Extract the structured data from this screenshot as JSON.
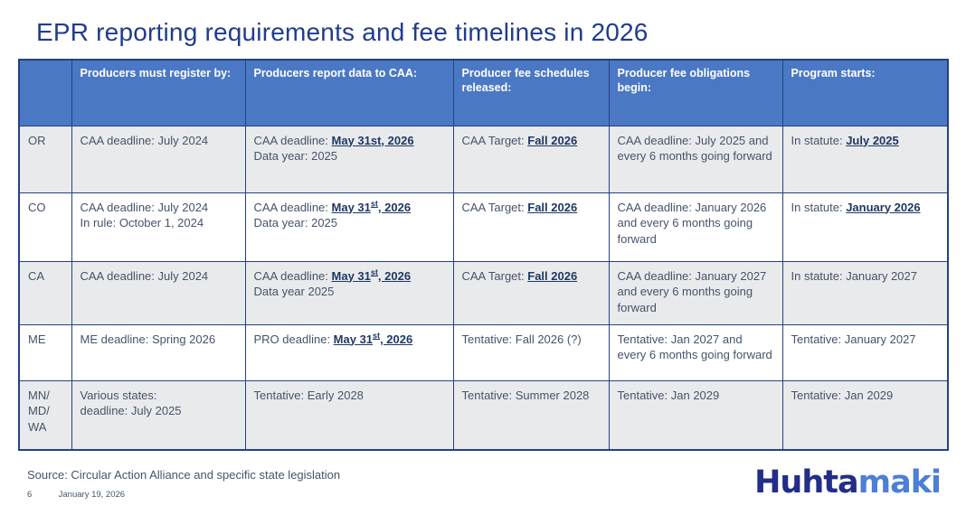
{
  "title": "EPR reporting requirements and fee timelines in 2026",
  "table": {
    "headers": [
      "",
      "Producers must register by:",
      "Producers report data to CAA:",
      "Producer fee schedules released:",
      "Producer fee obligations begin:",
      "Program starts:"
    ],
    "rows": [
      {
        "state": [
          "OR"
        ],
        "register": [
          [
            {
              "t": "CAA deadline: July 2024"
            }
          ]
        ],
        "report": [
          [
            {
              "t": "CAA deadline: "
            },
            {
              "t": "May 31st, 2026",
              "b": true,
              "u": true
            }
          ],
          [
            {
              "t": "Data year: 2025"
            }
          ]
        ],
        "schedules": [
          [
            {
              "t": "CAA Target: "
            },
            {
              "t": "Fall 2026",
              "b": true,
              "u": true
            }
          ]
        ],
        "obligations": [
          [
            {
              "t": "CAA deadline: July 2025 and every 6 months going forward"
            }
          ]
        ],
        "starts": [
          [
            {
              "t": "In statute: "
            },
            {
              "t": "July 2025",
              "b": true,
              "u": true
            }
          ]
        ]
      },
      {
        "state": [
          "CO"
        ],
        "register": [
          [
            {
              "t": "CAA deadline: July 2024"
            }
          ],
          [
            {
              "t": "In rule: October 1, 2024"
            }
          ]
        ],
        "report": [
          [
            {
              "t": "CAA deadline: "
            },
            {
              "t": "May 31",
              "b": true,
              "u": true
            },
            {
              "t": "st",
              "b": true,
              "u": true,
              "s": true
            },
            {
              "t": ", 2026",
              "b": true,
              "u": true
            }
          ],
          [
            {
              "t": "Data year: 2025"
            }
          ]
        ],
        "schedules": [
          [
            {
              "t": "CAA Target: "
            },
            {
              "t": "Fall 2026",
              "b": true,
              "u": true
            }
          ]
        ],
        "obligations": [
          [
            {
              "t": "CAA deadline: January 2026 and every 6 months going forward"
            }
          ]
        ],
        "starts": [
          [
            {
              "t": "In statute: "
            },
            {
              "t": "January 2026",
              "b": true,
              "u": true
            }
          ]
        ]
      },
      {
        "state": [
          "CA"
        ],
        "register": [
          [
            {
              "t": "CAA deadline: July 2024"
            }
          ]
        ],
        "report": [
          [
            {
              "t": "CAA deadline: "
            },
            {
              "t": "May 31",
              "b": true,
              "u": true
            },
            {
              "t": "st",
              "b": true,
              "u": true,
              "s": true
            },
            {
              "t": ", 2026",
              "b": true,
              "u": true
            }
          ],
          [
            {
              "t": "Data year 2025"
            }
          ]
        ],
        "schedules": [
          [
            {
              "t": "CAA Target: "
            },
            {
              "t": "Fall 2026",
              "b": true,
              "u": true
            }
          ]
        ],
        "obligations": [
          [
            {
              "t": "CAA deadline: January 2027 and every 6 months going forward"
            }
          ]
        ],
        "starts": [
          [
            {
              "t": "In statute: January 2027"
            }
          ]
        ]
      },
      {
        "state": [
          "ME"
        ],
        "register": [
          [
            {
              "t": "ME deadline: Spring 2026"
            }
          ]
        ],
        "report": [
          [
            {
              "t": "PRO deadline: "
            },
            {
              "t": "May 31",
              "b": true,
              "u": true
            },
            {
              "t": "st",
              "b": true,
              "u": true,
              "s": true
            },
            {
              "t": ", 2026",
              "b": true,
              "u": true
            }
          ]
        ],
        "schedules": [
          [
            {
              "t": "Tentative: Fall 2026 (?)"
            }
          ]
        ],
        "obligations": [
          [
            {
              "t": "Tentative: Jan 2027 and every 6 months going forward"
            }
          ]
        ],
        "starts": [
          [
            {
              "t": "Tentative: January 2027"
            }
          ]
        ]
      },
      {
        "state": [
          "MN/",
          "MD/",
          "WA"
        ],
        "register": [
          [
            {
              "t": "Various states:"
            }
          ],
          [
            {
              "t": "deadline: July 2025"
            }
          ]
        ],
        "report": [
          [
            {
              "t": "Tentative: Early 2028"
            }
          ]
        ],
        "schedules": [
          [
            {
              "t": "Tentative: Summer 2028"
            }
          ]
        ],
        "obligations": [
          [
            {
              "t": "Tentative: Jan 2029"
            }
          ]
        ],
        "starts": [
          [
            {
              "t": "Tentative: Jan 2029"
            }
          ]
        ]
      }
    ]
  },
  "footer": {
    "source": "Source: Circular Action Alliance and specific state legislation",
    "page_number": "6",
    "date": "January 19, 2026"
  },
  "logo": {
    "part1": "Huhta",
    "part2": "maki"
  },
  "colors": {
    "title": "#203C8F",
    "header_bg": "#4A78C5",
    "header_text": "#FFFFFF",
    "table_border": "#24427F",
    "row_alt_bg": "#E9EAEC",
    "body_text": "#44546A",
    "emphasis": "#1F3864",
    "logo_dark": "#222E87",
    "logo_light": "#4C7FD6"
  }
}
